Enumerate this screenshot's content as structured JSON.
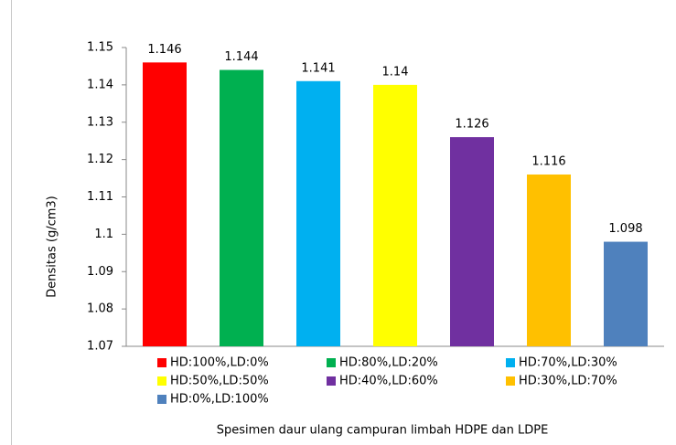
{
  "chart_data": {
    "type": "bar",
    "categories": [
      "HD:100%,LD:0%",
      "HD:80%,LD:20%",
      "HD:70%,LD:30%",
      "HD:50%,LD:50%",
      "HD:40%,LD:60%",
      "HD:30%,LD:70%",
      "HD:0%,LD:100%"
    ],
    "values": [
      1.146,
      1.144,
      1.141,
      1.14,
      1.126,
      1.116,
      1.098
    ],
    "colors": [
      "#ff0000",
      "#00b050",
      "#00b0f0",
      "#ffff00",
      "#7030a0",
      "#ffc000",
      "#4f81bd"
    ],
    "ylim": [
      1.07,
      1.15
    ],
    "yticks": [
      1.07,
      1.08,
      1.09,
      1.1,
      1.11,
      1.12,
      1.13,
      1.14,
      1.15
    ],
    "y_label": "Densitas (g/cm3)",
    "x_label": "Spesimen daur ulang  campuran limbah HDPE dan LDPE",
    "grid": false
  }
}
